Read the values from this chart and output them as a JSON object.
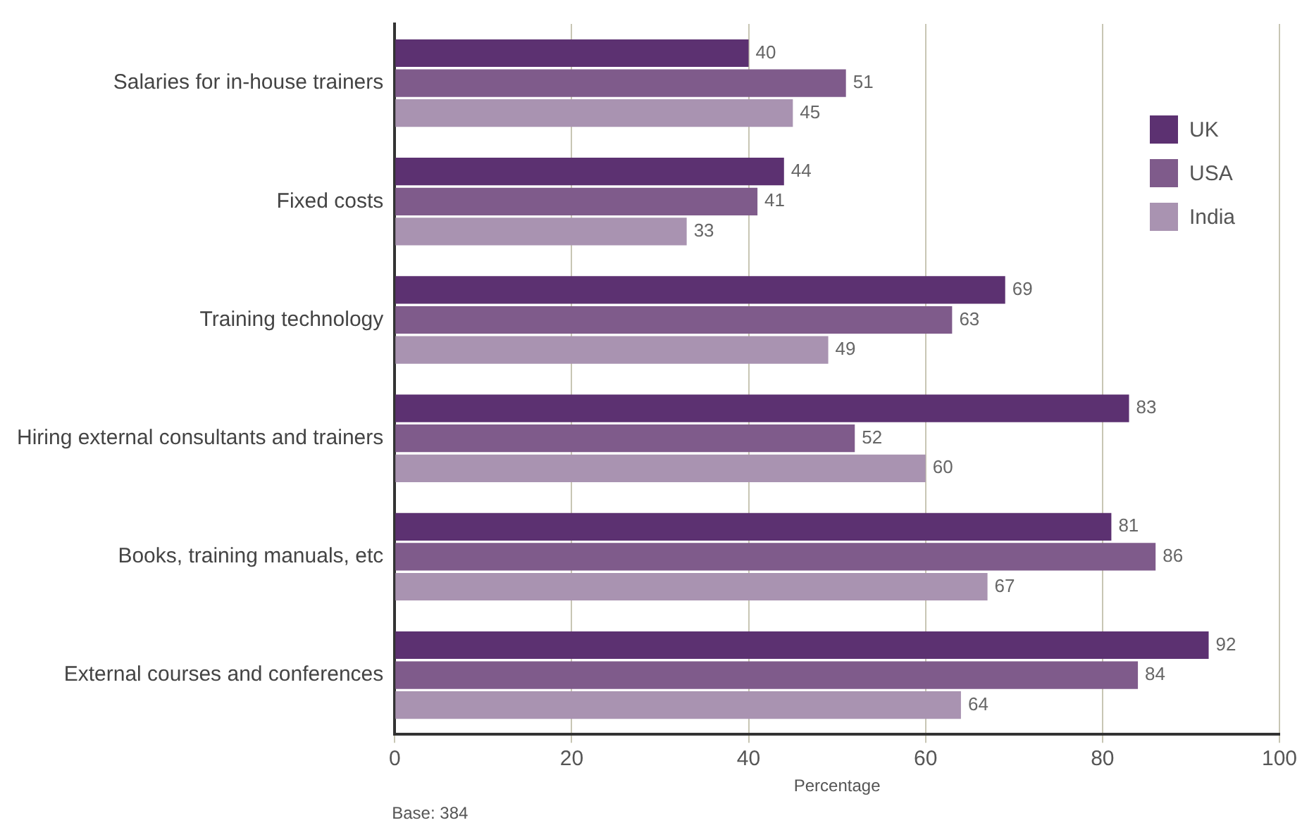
{
  "chart_data": {
    "type": "bar",
    "orientation": "horizontal",
    "xlabel": "Percentage",
    "categories": [
      "Salaries for in-house trainers",
      "Fixed costs",
      "Training technology",
      "Hiring external consultants and trainers",
      "Books, training manuals, etc",
      "External courses and conferences"
    ],
    "series": [
      {
        "name": "UK",
        "color": "#5c3171",
        "values": [
          40,
          44,
          69,
          83,
          81,
          92
        ]
      },
      {
        "name": "USA",
        "color": "#7f5b8b",
        "values": [
          51,
          41,
          63,
          52,
          86,
          84
        ]
      },
      {
        "name": "India",
        "color": "#a993b1",
        "values": [
          45,
          33,
          49,
          60,
          67,
          64
        ]
      }
    ],
    "xlim": [
      0,
      100
    ],
    "xticks": [
      0,
      20,
      40,
      60,
      80,
      100
    ],
    "grid": "x",
    "legend": "top right",
    "data_labels": true,
    "annotations": [
      "Base: 384"
    ]
  }
}
